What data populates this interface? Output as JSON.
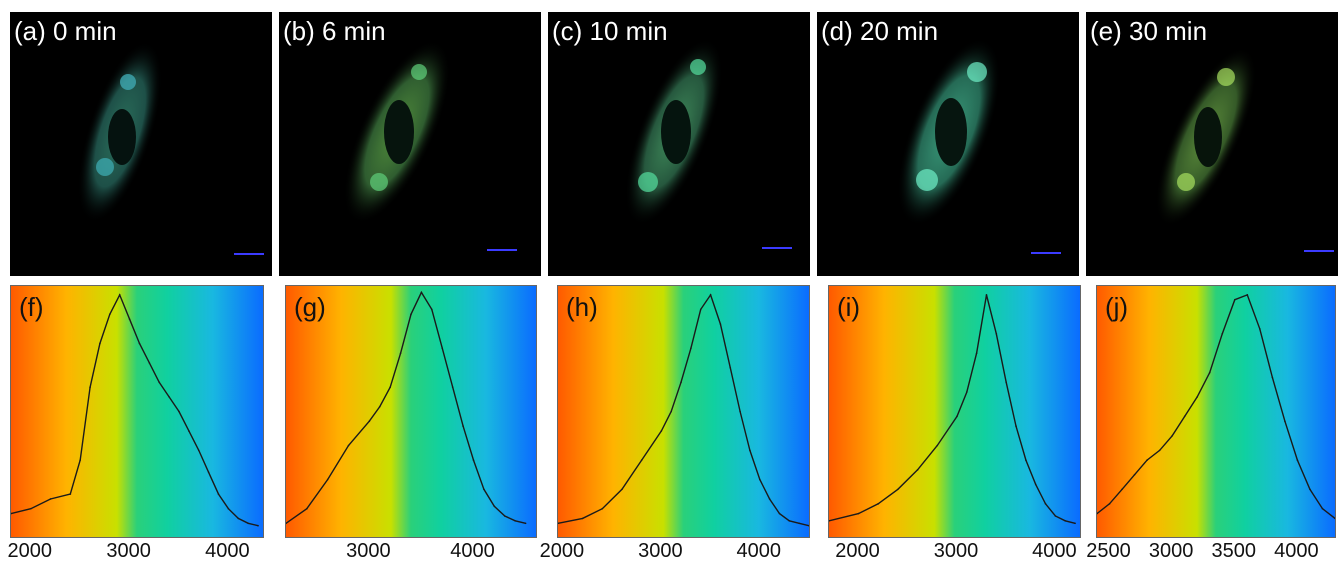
{
  "figure": {
    "micro_panels": [
      {
        "label": "(a) 0 min"
      },
      {
        "label": "(b) 6 min"
      },
      {
        "label": "(c) 10 min"
      },
      {
        "label": "(d) 20 min"
      },
      {
        "label": "(e) 30 min"
      }
    ]
  },
  "chart_data": [
    {
      "type": "line",
      "panel_label": "(f)",
      "xlim": [
        1800,
        4350
      ],
      "x_ticks": [
        2000,
        3000,
        4000
      ],
      "x": [
        1800,
        2000,
        2200,
        2400,
        2500,
        2600,
        2700,
        2800,
        2900,
        3000,
        3100,
        3200,
        3300,
        3400,
        3500,
        3600,
        3700,
        3800,
        3900,
        4000,
        4100,
        4200,
        4300
      ],
      "y": [
        0.08,
        0.1,
        0.14,
        0.16,
        0.3,
        0.6,
        0.78,
        0.9,
        0.98,
        0.88,
        0.78,
        0.7,
        0.62,
        0.56,
        0.5,
        0.42,
        0.34,
        0.25,
        0.16,
        0.1,
        0.06,
        0.04,
        0.03
      ]
    },
    {
      "type": "line",
      "panel_label": "(g)",
      "xlim": [
        2200,
        4600
      ],
      "x_ticks": [
        3000,
        4000
      ],
      "x": [
        2200,
        2400,
        2600,
        2800,
        3000,
        3100,
        3200,
        3300,
        3400,
        3500,
        3600,
        3700,
        3800,
        3900,
        4000,
        4100,
        4200,
        4300,
        4400,
        4500
      ],
      "y": [
        0.04,
        0.1,
        0.22,
        0.36,
        0.46,
        0.52,
        0.6,
        0.74,
        0.9,
        0.99,
        0.92,
        0.76,
        0.6,
        0.44,
        0.3,
        0.18,
        0.11,
        0.07,
        0.05,
        0.04
      ]
    },
    {
      "type": "line",
      "panel_label": "(h)",
      "xlim": [
        1950,
        4500
      ],
      "x_ticks": [
        2000,
        3000,
        4000
      ],
      "x": [
        1950,
        2200,
        2400,
        2600,
        2800,
        3000,
        3100,
        3200,
        3300,
        3400,
        3500,
        3600,
        3700,
        3800,
        3900,
        4000,
        4100,
        4200,
        4300,
        4400,
        4500
      ],
      "y": [
        0.04,
        0.06,
        0.1,
        0.18,
        0.3,
        0.42,
        0.5,
        0.62,
        0.76,
        0.92,
        0.98,
        0.86,
        0.68,
        0.5,
        0.34,
        0.22,
        0.14,
        0.08,
        0.05,
        0.04,
        0.03
      ]
    },
    {
      "type": "line",
      "panel_label": "(i)",
      "xlim": [
        1700,
        4250
      ],
      "x_ticks": [
        2000,
        3000,
        4000
      ],
      "x": [
        1700,
        2000,
        2200,
        2400,
        2600,
        2800,
        3000,
        3100,
        3200,
        3300,
        3400,
        3500,
        3600,
        3700,
        3800,
        3900,
        4000,
        4100,
        4200
      ],
      "y": [
        0.05,
        0.08,
        0.12,
        0.18,
        0.26,
        0.36,
        0.48,
        0.58,
        0.74,
        0.98,
        0.82,
        0.62,
        0.44,
        0.3,
        0.2,
        0.12,
        0.07,
        0.05,
        0.04
      ]
    },
    {
      "type": "line",
      "panel_label": "(j)",
      "xlim": [
        2400,
        4300
      ],
      "x_ticks": [
        2500,
        3000,
        3500,
        4000
      ],
      "x": [
        2400,
        2500,
        2600,
        2700,
        2800,
        2900,
        3000,
        3100,
        3200,
        3300,
        3400,
        3500,
        3600,
        3700,
        3800,
        3900,
        4000,
        4100,
        4200,
        4300
      ],
      "y": [
        0.08,
        0.12,
        0.18,
        0.24,
        0.3,
        0.34,
        0.4,
        0.48,
        0.56,
        0.66,
        0.82,
        0.96,
        0.98,
        0.84,
        0.64,
        0.46,
        0.3,
        0.18,
        0.1,
        0.06
      ]
    }
  ]
}
